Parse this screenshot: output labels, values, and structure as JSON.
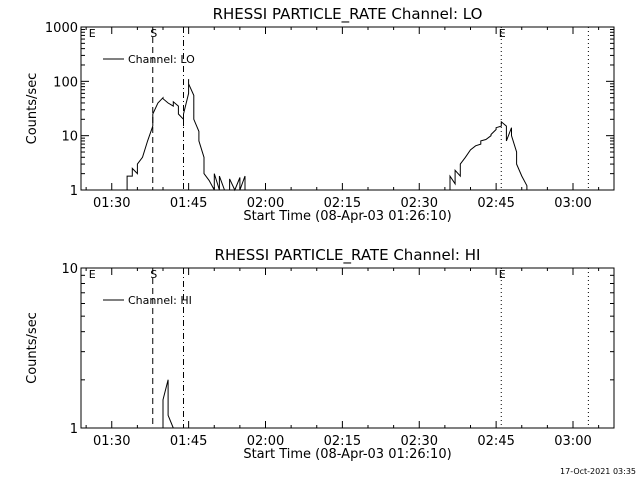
{
  "timestamp": "17-Oct-2021 03:35",
  "chart_data": [
    {
      "type": "line",
      "title": "RHESSI PARTICLE_RATE Channel: LO",
      "xlabel": "Start Time (08-Apr-03 01:26:10)",
      "ylabel": "Counts/sec",
      "yscale": "log",
      "xlim": [
        "01:24",
        "03:08"
      ],
      "ylim": [
        1,
        1000
      ],
      "xticks": [
        "01:30",
        "01:45",
        "02:00",
        "02:15",
        "02:30",
        "02:45",
        "03:00"
      ],
      "yticks": [
        "1",
        "10",
        "100",
        "1000"
      ],
      "legend": {
        "label": "Channel: LO",
        "placement": "top-left"
      },
      "markers": [
        {
          "label": "E",
          "time": "01:26",
          "style": "dotted",
          "line": false
        },
        {
          "label": "S",
          "time": "01:38",
          "style": "dashed",
          "line": true
        },
        {
          "label": "",
          "time": "01:44",
          "style": "dashdot",
          "line": true
        },
        {
          "label": "E",
          "time": "02:46",
          "style": "dotted",
          "line": true
        },
        {
          "label": "",
          "time": "03:03",
          "style": "dotted",
          "line": true
        }
      ],
      "series": [
        {
          "x": [
            "01:33",
            "01:33",
            "01:34",
            "01:34",
            "01:35",
            "01:35",
            "01:36",
            "01:37",
            "01:38",
            "01:38",
            "01:39",
            "01:40",
            "01:40",
            "01:41",
            "01:42",
            "01:42",
            "01:43",
            "01:43",
            "01:44",
            "01:44",
            "01:44",
            "01:45",
            "01:45",
            "01:45",
            "01:46",
            "01:46",
            "01:47",
            "01:47",
            "01:48",
            "01:48",
            "01:49",
            "01:50",
            "01:50",
            "01:51",
            "01:51",
            "01:52",
            "01:53",
            "01:53",
            "01:54",
            "01:54",
            "01:55",
            "01:55",
            "01:56",
            "01:56"
          ],
          "y": [
            1,
            1.8,
            1.8,
            2.5,
            2,
            3,
            4,
            8,
            15,
            25,
            40,
            50,
            48,
            40,
            35,
            42,
            35,
            25,
            20,
            15,
            25,
            60,
            110,
            90,
            55,
            20,
            12,
            8,
            4,
            2,
            1.5,
            1,
            2,
            1,
            1.8,
            1,
            1,
            1.6,
            1,
            1,
            1.7,
            1,
            1.8,
            1
          ]
        },
        {
          "x": [
            "02:36",
            "02:36",
            "02:37",
            "02:37",
            "02:38",
            "02:38",
            "02:39",
            "02:40",
            "02:41",
            "02:42",
            "02:42",
            "02:43",
            "02:44",
            "02:44",
            "02:45",
            "02:45",
            "02:46",
            "02:46",
            "02:47",
            "02:47",
            "02:48",
            "02:48",
            "02:49",
            "02:49",
            "02:50",
            "02:51",
            "02:51"
          ],
          "y": [
            1,
            1.8,
            1.3,
            2.3,
            1.8,
            3,
            4,
            5.5,
            6.5,
            7,
            8,
            8.5,
            10,
            10.5,
            13,
            14,
            15,
            18,
            15,
            8,
            14,
            10,
            5,
            3,
            1.8,
            1.2,
            1
          ]
        }
      ]
    },
    {
      "type": "line",
      "title": "RHESSI PARTICLE_RATE Channel: HI",
      "xlabel": "Start Time (08-Apr-03 01:26:10)",
      "ylabel": "Counts/sec",
      "yscale": "log",
      "xlim": [
        "01:24",
        "03:08"
      ],
      "ylim": [
        1,
        10
      ],
      "xticks": [
        "01:30",
        "01:45",
        "02:00",
        "02:15",
        "02:30",
        "02:45",
        "03:00"
      ],
      "yticks": [
        "1",
        "10"
      ],
      "legend": {
        "label": "Channel: HI",
        "placement": "top-left"
      },
      "markers": [
        {
          "label": "E",
          "time": "01:26",
          "style": "dotted",
          "line": false
        },
        {
          "label": "S",
          "time": "01:38",
          "style": "dashed",
          "line": true
        },
        {
          "label": "",
          "time": "01:44",
          "style": "dashdot",
          "line": true
        },
        {
          "label": "E",
          "time": "02:46",
          "style": "dotted",
          "line": true
        },
        {
          "label": "",
          "time": "03:03",
          "style": "dotted",
          "line": true
        }
      ],
      "series": [
        {
          "x": [
            "01:40",
            "01:40",
            "01:41",
            "01:41",
            "01:42"
          ],
          "y": [
            1,
            1.5,
            2,
            1.2,
            1
          ]
        }
      ]
    }
  ]
}
